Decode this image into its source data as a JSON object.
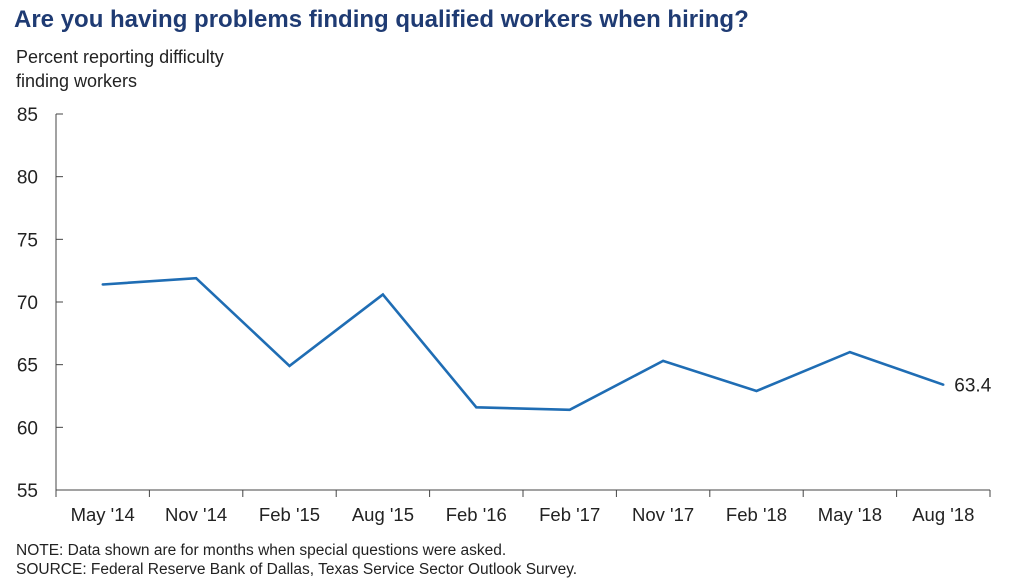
{
  "title": "Are you having problems finding qualified workers when hiring?",
  "ylabel_lines": [
    "Percent reporting difficulty",
    "finding workers"
  ],
  "note": "NOTE: Data shown are for months when special questions were asked.",
  "source": "SOURCE: Federal Reserve Bank of Dallas, Texas Service Sector Outlook Survey.",
  "colors": {
    "line": "#1f6db4",
    "title": "#1f3b73",
    "axis": "#444444"
  },
  "chart_data": {
    "type": "line",
    "title": "Are you having problems finding qualified workers when hiring?",
    "ylabel": "Percent reporting difficulty finding workers",
    "xlabel": "",
    "categories": [
      "May '14",
      "Nov '14",
      "Feb '15",
      "Aug '15",
      "Feb '16",
      "Feb '17",
      "Nov '17",
      "Feb '18",
      "May '18",
      "Aug '18"
    ],
    "series": [
      {
        "values": [
          71.4,
          71.9,
          64.9,
          70.6,
          61.6,
          61.4,
          65.3,
          62.9,
          66.0,
          63.4
        ]
      }
    ],
    "ylim": [
      55,
      85
    ],
    "yticks": [
      55,
      60,
      65,
      70,
      75,
      80,
      85
    ],
    "end_label": "63.4",
    "grid": false,
    "legend": "none"
  }
}
